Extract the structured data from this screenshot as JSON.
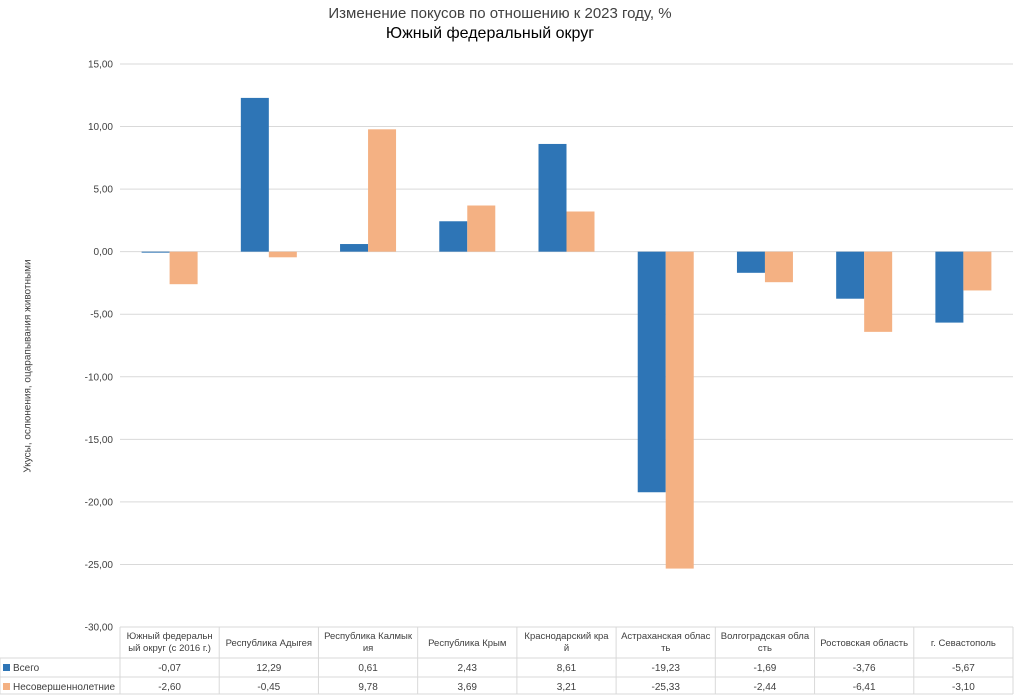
{
  "chart_data": {
    "type": "bar",
    "title": "Изменение покусов по отношению к 2023 году, %",
    "subtitle": "Южный федеральный округ",
    "ylabel": "Укусы, ослюнения, оцарапывания животными",
    "ylim": [
      -30,
      15
    ],
    "y_ticks": [
      "15,00",
      "10,00",
      "5,00",
      "0,00",
      "-5,00",
      "-10,00",
      "-15,00",
      "-20,00",
      "-25,00",
      "-30,00"
    ],
    "grid": true,
    "legend": "data-table",
    "categories": [
      [
        "Южный федеральн",
        "ый округ (с 2016 г.)"
      ],
      [
        "Республика Адыгея"
      ],
      [
        "Республика Калмык",
        "ия"
      ],
      [
        "Республика Крым"
      ],
      [
        "Краснодарский кра",
        "й"
      ],
      [
        "Астраханская облас",
        "ть"
      ],
      [
        "Волгоградская обла",
        "сть"
      ],
      [
        "Ростовская область"
      ],
      [
        "г. Севастополь"
      ]
    ],
    "series": [
      {
        "name": "Всего",
        "color": "#2E75B6",
        "values": [
          -0.07,
          12.29,
          0.61,
          2.43,
          8.61,
          -19.23,
          -1.69,
          -3.76,
          -5.67
        ],
        "labels": [
          "-0,07",
          "12,29",
          "0,61",
          "2,43",
          "8,61",
          "-19,23",
          "-1,69",
          "-3,76",
          "-5,67"
        ]
      },
      {
        "name": "Несовершеннолетние",
        "color": "#F4B183",
        "values": [
          -2.6,
          -0.45,
          9.78,
          3.69,
          3.21,
          -25.33,
          -2.44,
          -6.41,
          -3.1
        ],
        "labels": [
          "-2,60",
          "-0,45",
          "9,78",
          "3,69",
          "3,21",
          "-25,33",
          "-2,44",
          "-6,41",
          "-3,10"
        ]
      }
    ]
  }
}
